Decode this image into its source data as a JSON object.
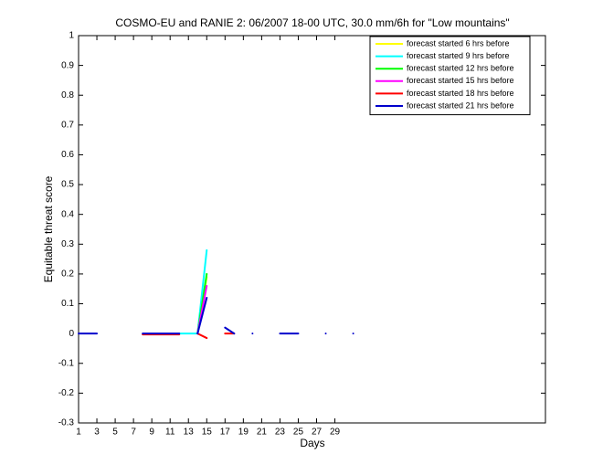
{
  "chart_data": {
    "type": "line",
    "title": "COSMO-EU and RANIE 2: 06/2007 18-00 UTC, 30.0 mm/6h for \"Low mountains\"",
    "x_label": "Days",
    "y_label": "Equitable threat score",
    "x": [
      1,
      2,
      3,
      4,
      5,
      6,
      7,
      8,
      9,
      10,
      11,
      12,
      13,
      14,
      15,
      16,
      17,
      18,
      19,
      20,
      21,
      22,
      23,
      24,
      25,
      26,
      27,
      28,
      29,
      30,
      31
    ],
    "xlim": [
      1,
      52
    ],
    "xticks": [
      1,
      3,
      5,
      7,
      9,
      11,
      13,
      15,
      17,
      19,
      21,
      23,
      25,
      27,
      29
    ],
    "ylim": [
      -0.3,
      1
    ],
    "yticks": [
      -0.3,
      -0.2,
      -0.1,
      0,
      0.1,
      0.2,
      0.3,
      0.4,
      0.5,
      0.6,
      0.7,
      0.8,
      0.9,
      1
    ],
    "legend_position": "upper right",
    "series": [
      {
        "name": "forecast started 6 hrs before",
        "color": "#ffff00",
        "values": [
          null,
          null,
          null,
          null,
          null,
          null,
          null,
          null,
          null,
          null,
          null,
          null,
          null,
          0,
          0.19,
          null,
          null,
          null,
          null,
          null,
          null,
          null,
          null,
          null,
          null,
          null,
          null,
          null,
          null,
          null,
          null
        ]
      },
      {
        "name": "forecast started 9 hrs before",
        "color": "#00ffff",
        "values": [
          null,
          null,
          null,
          null,
          null,
          null,
          null,
          null,
          null,
          null,
          null,
          0,
          0,
          0,
          0.28,
          null,
          null,
          null,
          null,
          null,
          null,
          null,
          null,
          null,
          null,
          null,
          null,
          null,
          null,
          null,
          null
        ]
      },
      {
        "name": "forecast started 12 hrs before",
        "color": "#00ff00",
        "values": [
          null,
          null,
          null,
          null,
          null,
          null,
          null,
          null,
          null,
          null,
          null,
          null,
          null,
          0,
          0.2,
          null,
          null,
          null,
          null,
          null,
          null,
          null,
          null,
          null,
          null,
          null,
          null,
          null,
          null,
          null,
          null
        ]
      },
      {
        "name": "forecast started 15 hrs before",
        "color": "#ff00ff",
        "values": [
          null,
          null,
          null,
          null,
          null,
          null,
          null,
          null,
          null,
          null,
          null,
          null,
          null,
          0,
          0.16,
          null,
          null,
          null,
          null,
          null,
          null,
          null,
          null,
          null,
          null,
          null,
          null,
          null,
          null,
          null,
          null
        ]
      },
      {
        "name": "forecast started 18 hrs before",
        "color": "#ff0000",
        "values": [
          null,
          null,
          null,
          null,
          null,
          null,
          null,
          -0.003,
          -0.003,
          -0.003,
          -0.003,
          -0.003,
          null,
          0,
          -0.015,
          null,
          0,
          0,
          null,
          null,
          null,
          null,
          null,
          null,
          null,
          null,
          null,
          null,
          null,
          null,
          null
        ]
      },
      {
        "name": "forecast started 21 hrs before",
        "color": "#0000cc",
        "values": [
          0,
          0,
          0,
          null,
          null,
          null,
          null,
          0,
          0,
          0,
          0,
          0,
          null,
          0,
          0.12,
          null,
          0.02,
          0,
          null,
          0,
          null,
          null,
          0,
          0,
          0,
          null,
          null,
          0,
          null,
          null,
          0
        ]
      }
    ]
  }
}
